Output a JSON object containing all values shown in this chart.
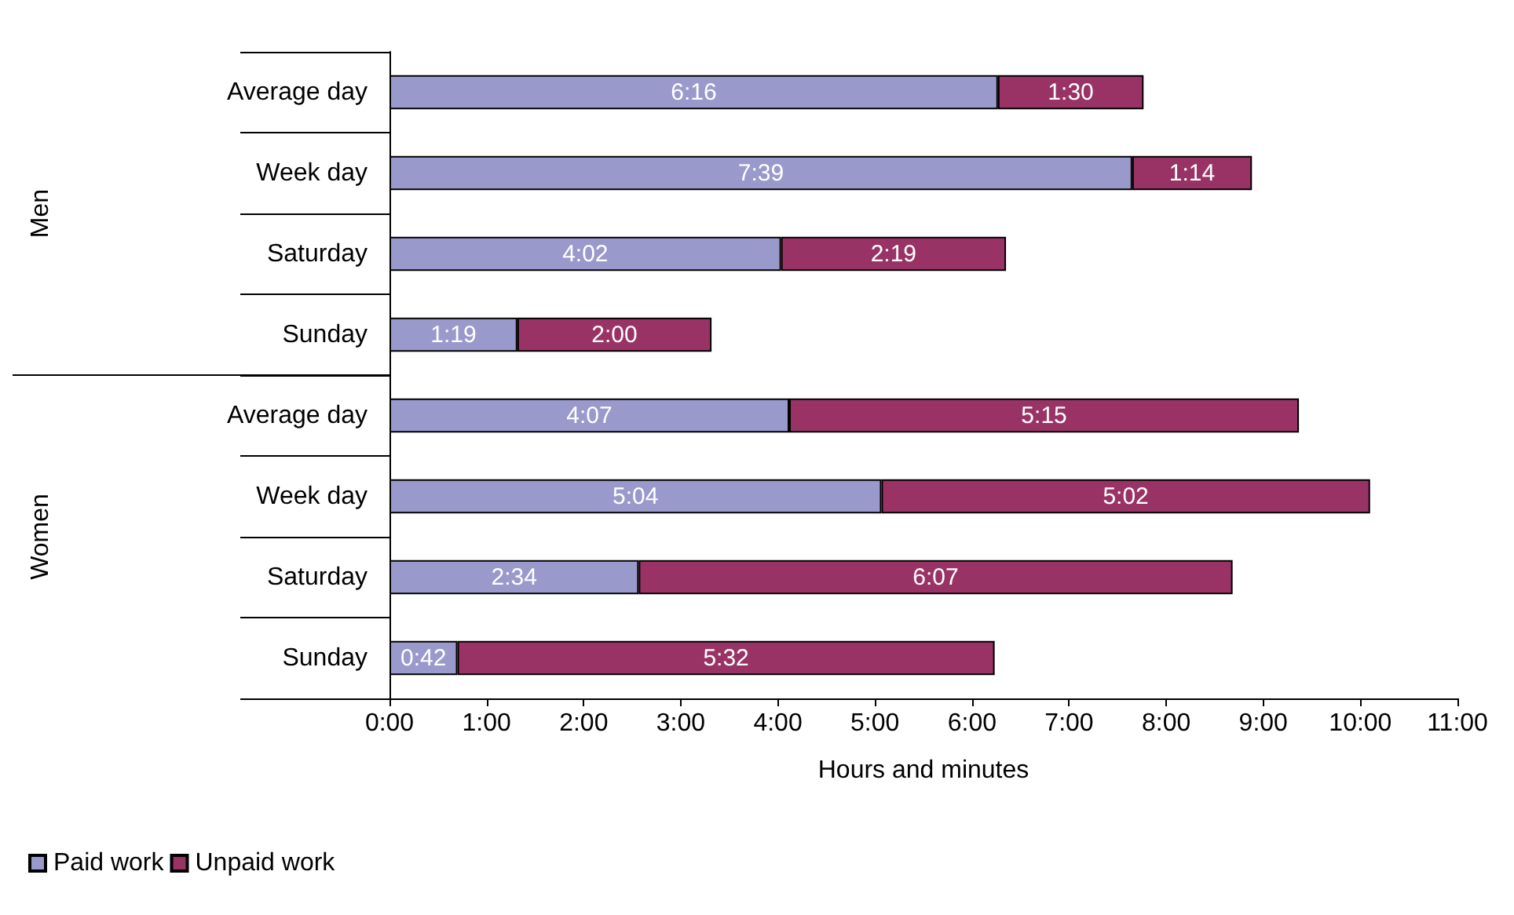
{
  "chart_data": {
    "type": "bar",
    "orientation": "horizontal",
    "stacked": true,
    "xlabel": "Hours and minutes",
    "categories": [
      "Average day",
      "Week day",
      "Saturday",
      "Sunday",
      "Average day",
      "Week day",
      "Saturday",
      "Sunday"
    ],
    "series": [
      {
        "name": "Paid work",
        "color": "#9999cc",
        "values": [
          6.267,
          7.65,
          4.033,
          1.317,
          4.117,
          5.067,
          2.567,
          0.7
        ],
        "value_labels": [
          "6:16",
          "7:39",
          "4:02",
          "1:19",
          "4:07",
          "5:04",
          "2:34",
          "0:42"
        ]
      },
      {
        "name": "Unpaid work",
        "color": "#993366",
        "values": [
          1.5,
          1.233,
          2.317,
          2,
          5.25,
          5.033,
          6.117,
          5.533
        ],
        "value_labels": [
          "1:30",
          "1:14",
          "2:19",
          "2:00",
          "5:15",
          "5:02",
          "6:07",
          "5:32"
        ]
      }
    ],
    "xlim": [
      0,
      11
    ],
    "xticks": [
      {
        "value": 0,
        "label": "0:00"
      },
      {
        "value": 1,
        "label": "1:00"
      },
      {
        "value": 2,
        "label": "2:00"
      },
      {
        "value": 3,
        "label": "3:00"
      },
      {
        "value": 4,
        "label": "4:00"
      },
      {
        "value": 5,
        "label": "5:00"
      },
      {
        "value": 6,
        "label": "6:00"
      },
      {
        "value": 7,
        "label": "7:00"
      },
      {
        "value": 8,
        "label": "8:00"
      },
      {
        "value": 9,
        "label": "9:00"
      },
      {
        "value": 10,
        "label": "10:00"
      },
      {
        "value": 11,
        "label": "11:00"
      }
    ],
    "annotations": [
      "Men",
      "Women"
    ],
    "legend": "bottom left",
    "grid": false
  }
}
